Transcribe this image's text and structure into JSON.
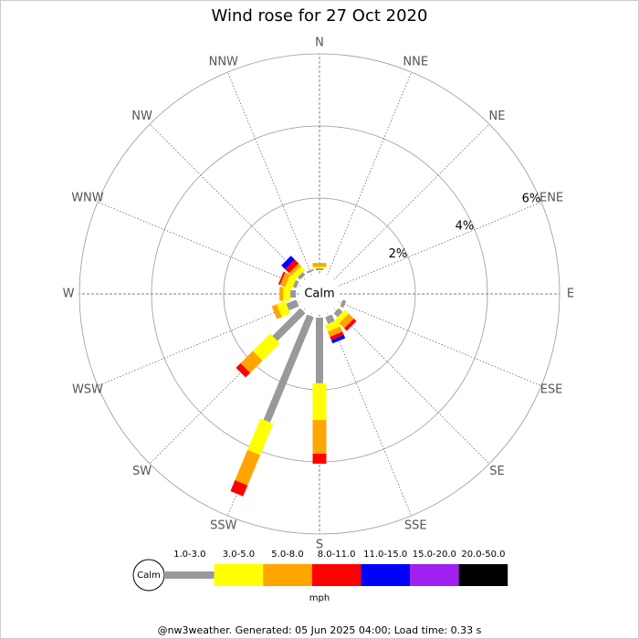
{
  "chart_data": {
    "type": "windrose",
    "title": "Wind rose for 27 Oct 2020",
    "calm_label": "Calm",
    "units": "mph",
    "footer": "@nw3weather. Generated: 05 Jun 2025 04:00; Load time: 0.33 s",
    "categories": [
      "N",
      "NNE",
      "NE",
      "ENE",
      "E",
      "ESE",
      "SE",
      "SSE",
      "S",
      "SSW",
      "SW",
      "WSW",
      "W",
      "WNW",
      "NW",
      "NNW"
    ],
    "rlim": [
      0,
      6
    ],
    "rticks": [
      {
        "value": 2,
        "label": "2%"
      },
      {
        "value": 4,
        "label": "4%"
      },
      {
        "value": 6,
        "label": "6%"
      }
    ],
    "series": [
      {
        "name": "1.0-3.0",
        "color": "#999999",
        "values": [
          0.05,
          0,
          0,
          0,
          0,
          0.1,
          0.15,
          0.2,
          1.82,
          3.16,
          1.09,
          0.3,
          0.15,
          0.1,
          0.1,
          0.05
        ]
      },
      {
        "name": "3.0-5.0",
        "color": "#ffff00",
        "values": [
          0.05,
          0,
          0,
          0,
          0,
          0,
          0.15,
          0.2,
          1.02,
          0.94,
          0.68,
          0.25,
          0.2,
          0.2,
          0.15,
          0
        ]
      },
      {
        "name": "5.0-8.0",
        "color": "#ffa500",
        "values": [
          0.1,
          0,
          0,
          0,
          0,
          0,
          0.2,
          0.15,
          0.93,
          0.91,
          0.48,
          0.15,
          0.1,
          0.15,
          0.1,
          0
        ]
      },
      {
        "name": "8.0-11.0",
        "color": "#ff0000",
        "values": [
          0,
          0,
          0,
          0,
          0,
          0,
          0.1,
          0.1,
          0.28,
          0.33,
          0.18,
          0,
          0,
          0.05,
          0.15,
          0
        ]
      },
      {
        "name": "11.0-15.0",
        "color": "#0000ff",
        "values": [
          0,
          0,
          0,
          0,
          0,
          0,
          0,
          0.1,
          0,
          0,
          0,
          0,
          0,
          0,
          0.15,
          0
        ]
      },
      {
        "name": "15.0-20.0",
        "color": "#a020f0",
        "values": [
          0,
          0,
          0,
          0,
          0,
          0,
          0,
          0,
          0,
          0,
          0,
          0,
          0,
          0,
          0,
          0
        ]
      },
      {
        "name": "20.0-50.0",
        "color": "#000000",
        "values": [
          0,
          0,
          0,
          0,
          0,
          0,
          0,
          0,
          0,
          0,
          0,
          0,
          0,
          0,
          0,
          0
        ]
      }
    ]
  }
}
